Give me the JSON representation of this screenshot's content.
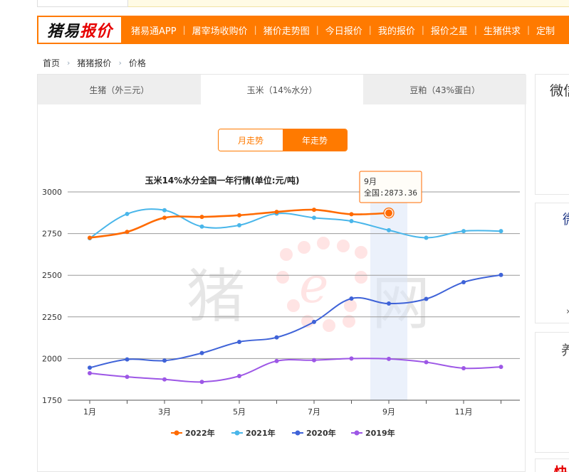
{
  "logo": {
    "part1": "猪易",
    "part2": "报价"
  },
  "nav": {
    "items": [
      "猪易通APP",
      "屠宰场收购价",
      "猪价走势图",
      "今日报价",
      "我的报价",
      "报价之星",
      "生猪供求",
      "定制"
    ],
    "separator": "|"
  },
  "breadcrumb": {
    "items": [
      "首页",
      "猪猪报价",
      "价格"
    ],
    "arrow": "›"
  },
  "tabs": [
    "生猪（外三元）",
    "玉米（14%水分）",
    "豆粕（43%蛋白）"
  ],
  "toggle": {
    "month": "月走势",
    "year": "年走势"
  },
  "sidebar": {
    "box1": "微信",
    "box2": "微",
    "box3": "养",
    "box4": "快"
  },
  "watermark": {
    "text1": "猪",
    "text2": "网"
  },
  "chart_data": {
    "type": "line",
    "title": "玉米14%水分全国一年行情(单位:元/吨)",
    "x_tick_labels": [
      "1月",
      "3月",
      "5月",
      "7月",
      "9月",
      "11月"
    ],
    "months": [
      1,
      2,
      3,
      4,
      5,
      6,
      7,
      8,
      9,
      10,
      11,
      12
    ],
    "ylim": [
      1750,
      3000
    ],
    "yticks": [
      1750,
      2000,
      2250,
      2500,
      2750,
      3000
    ],
    "grid": true,
    "legend_position": "bottom",
    "highlight_month": 9,
    "tooltip": {
      "title": "9月",
      "label": "全国:2873.36"
    },
    "series": [
      {
        "name": "2022年",
        "color": "#ff6a00",
        "values": [
          2725,
          2760,
          2845,
          2850,
          2860,
          2880,
          2893,
          2866,
          2873.36
        ]
      },
      {
        "name": "2021年",
        "color": "#49b6ea",
        "values": [
          2722,
          2868,
          2890,
          2792,
          2800,
          2870,
          2845,
          2825,
          2770,
          2725,
          2765,
          2765
        ]
      },
      {
        "name": "2020年",
        "color": "#3f63d8",
        "values": [
          1945,
          1995,
          1988,
          2033,
          2100,
          2127,
          2220,
          2360,
          2330,
          2358,
          2458,
          2502
        ]
      },
      {
        "name": "2019年",
        "color": "#9d57e6",
        "values": [
          1912,
          1890,
          1875,
          1860,
          1895,
          1985,
          1990,
          2000,
          1998,
          1978,
          1942,
          1950
        ]
      }
    ]
  }
}
